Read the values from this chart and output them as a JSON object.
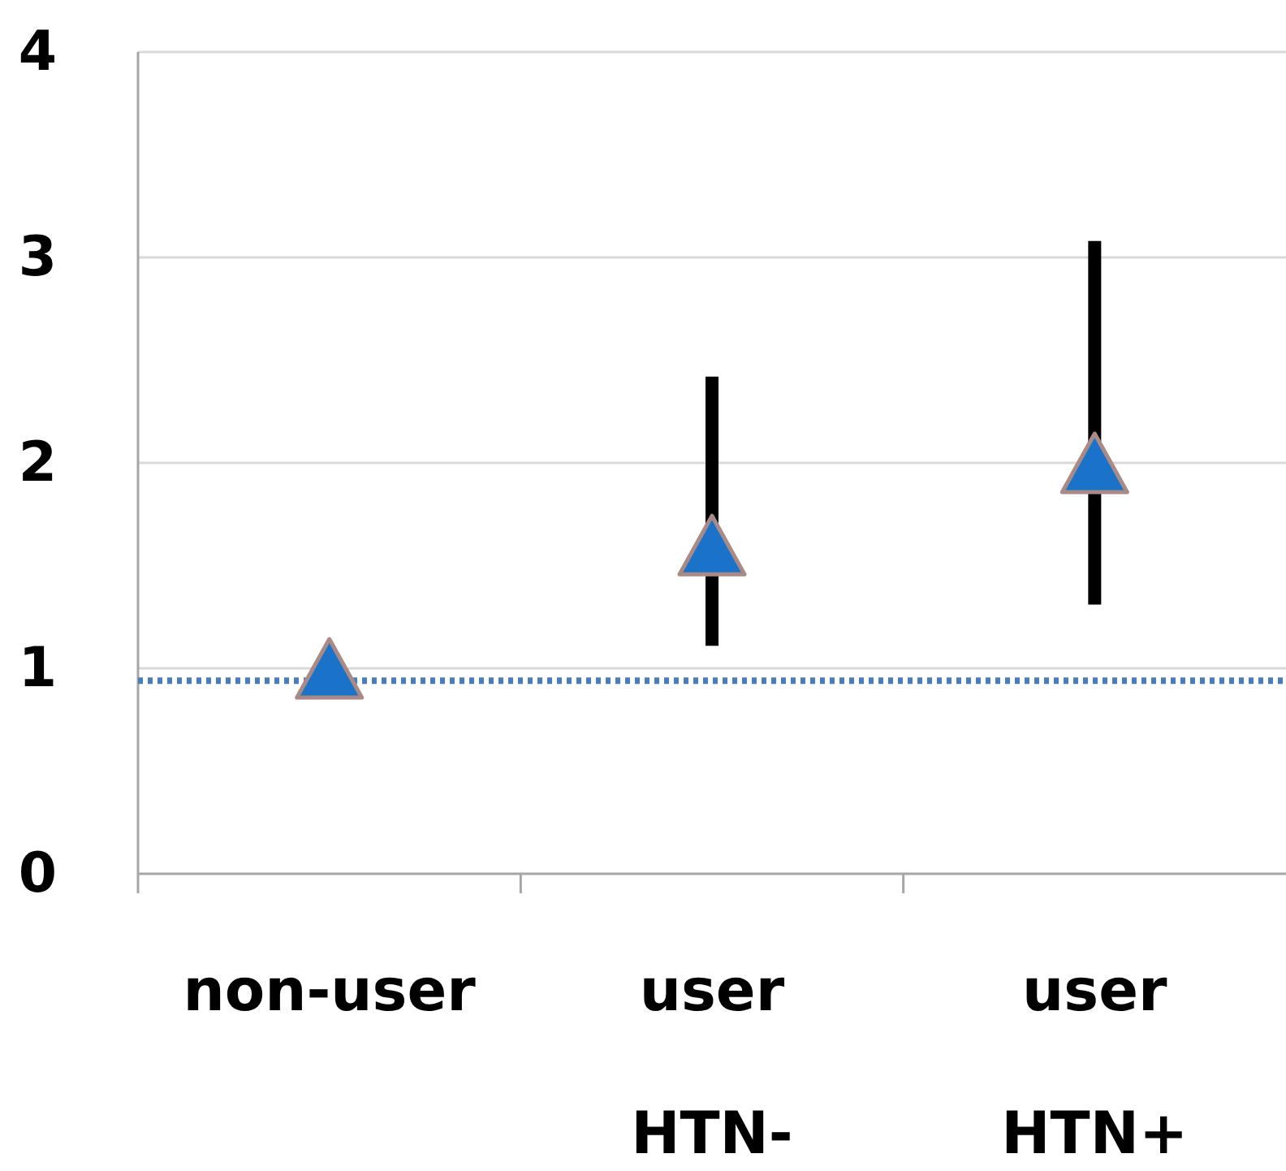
{
  "chart_data": {
    "type": "scatter",
    "categories": [
      "non-user",
      "user\nHTN-",
      "user\nHTN+"
    ],
    "values": [
      1.0,
      1.6,
      2.0
    ],
    "errors": [
      null,
      [
        1.11,
        2.42
      ],
      [
        1.31,
        3.08
      ]
    ],
    "color": "#1a73c9",
    "marker": "triangle",
    "ylim": [
      0,
      4
    ],
    "yticks": [
      0,
      1,
      2,
      3,
      4
    ],
    "grid": "y",
    "ref_lines": [
      {
        "axis": "y",
        "value": 0.94,
        "color": "#4a7ebb",
        "line_style": "dotted"
      }
    ]
  }
}
